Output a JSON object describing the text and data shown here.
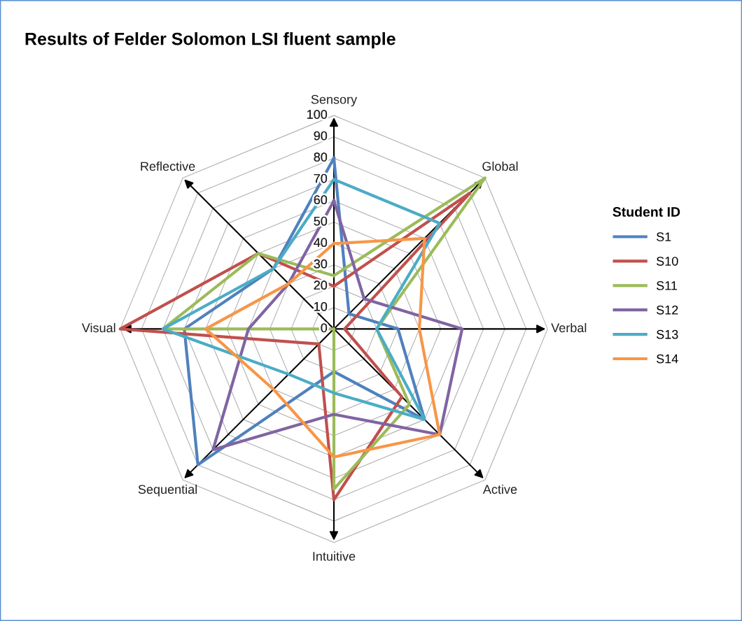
{
  "chart_data": {
    "type": "radar",
    "title": "Results of Felder Solomon LSI fluent sample",
    "categories": [
      "Sensory",
      "Global",
      "Verbal",
      "Active",
      "Intuitive",
      "Sequential",
      "Visual",
      "Reflective"
    ],
    "series": [
      {
        "name": "S1",
        "color": "#4f81bd",
        "values": [
          80,
          10,
          30,
          60,
          20,
          90,
          70,
          40
        ]
      },
      {
        "name": "S10",
        "color": "#c0504d",
        "values": [
          20,
          90,
          5,
          45,
          80,
          10,
          100,
          50
        ]
      },
      {
        "name": "S11",
        "color": "#9bbb59",
        "values": [
          25,
          100,
          20,
          50,
          75,
          0,
          80,
          50
        ]
      },
      {
        "name": "S12",
        "color": "#8064a2",
        "values": [
          60,
          20,
          60,
          70,
          40,
          80,
          40,
          30
        ]
      },
      {
        "name": "S13",
        "color": "#4bacc6",
        "values": [
          70,
          70,
          20,
          60,
          30,
          30,
          80,
          40
        ]
      },
      {
        "name": "S14",
        "color": "#f79646",
        "values": [
          40,
          60,
          40,
          70,
          60,
          40,
          60,
          30
        ]
      }
    ],
    "ylim": [
      0,
      100
    ],
    "yticks": [
      0,
      10,
      20,
      30,
      40,
      50,
      60,
      70,
      80,
      90,
      100
    ],
    "grid": true,
    "legend": "right",
    "legend_title": "Student ID",
    "marker": "none"
  }
}
